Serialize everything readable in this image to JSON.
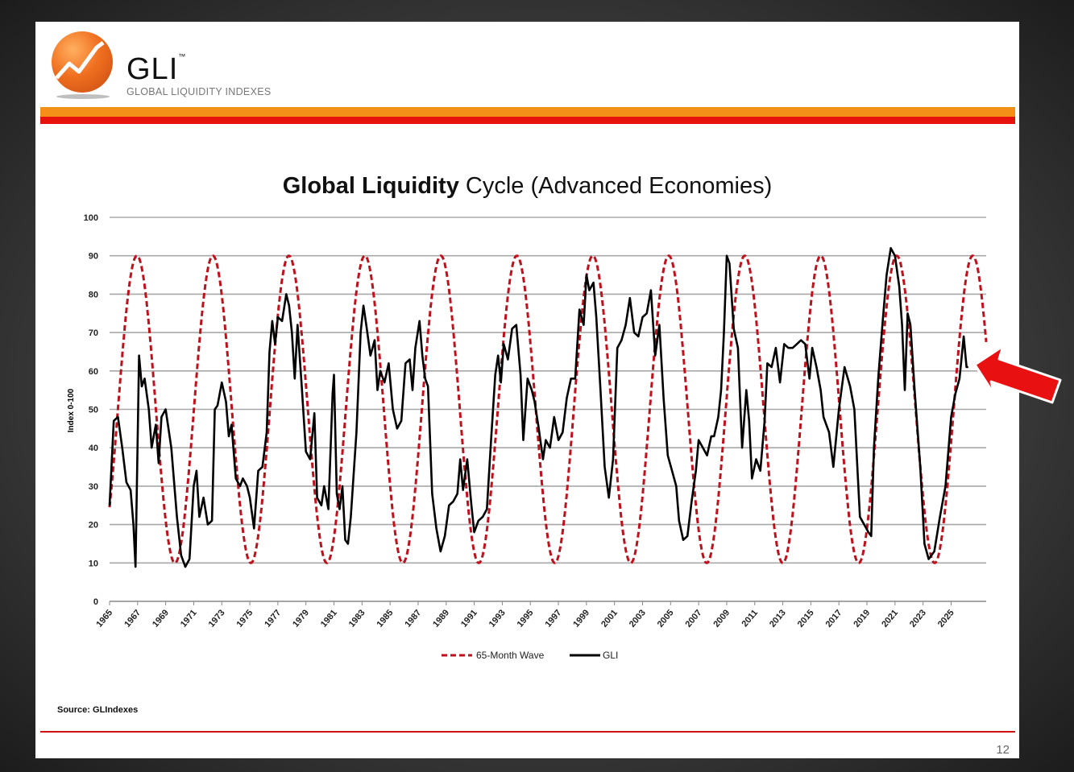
{
  "logo": {
    "name": "GLI",
    "tm": "™",
    "subtitle": "GLOBAL LIQUIDITY INDEXES"
  },
  "source": "Source: GLIndexes",
  "page_number": "12",
  "colors": {
    "wave": "#c0101c",
    "gli": "#000000",
    "accent_orange": "#f39018",
    "accent_red": "#e8120c",
    "arrow": "#e81010"
  },
  "chart_data": {
    "type": "line",
    "title_bold": "Global Liquidity",
    "title_rest": " Cycle (Advanced Economies)",
    "xlabel": "",
    "ylabel": "Index 0-100",
    "ylim": [
      0,
      100
    ],
    "xlim": [
      1965,
      2027.5
    ],
    "yticks": [
      "0",
      "10",
      "20",
      "30",
      "40",
      "50",
      "60",
      "70",
      "80",
      "90",
      "100"
    ],
    "xticks": [
      "1965",
      "1967",
      "1969",
      "1971",
      "1973",
      "1975",
      "1977",
      "1979",
      "1981",
      "1983",
      "1985",
      "1987",
      "1989",
      "1991",
      "1993",
      "1995",
      "1997",
      "1999",
      "2001",
      "2003",
      "2005",
      "2007",
      "2009",
      "2011",
      "2013",
      "2015",
      "2017",
      "2019",
      "2021",
      "2023",
      "2025"
    ],
    "grid": true,
    "legend_position": "bottom-center",
    "series": [
      {
        "name": "65-Month Wave",
        "style": "dashed",
        "formula": "50 + 40*cos(2*pi*(t-1966.95)/5.417)",
        "x_range": [
          1965,
          2027.5
        ]
      },
      {
        "name": "GLI",
        "style": "solid",
        "points": [
          [
            1965.0,
            25
          ],
          [
            1965.3,
            47
          ],
          [
            1965.6,
            48
          ],
          [
            1965.9,
            40
          ],
          [
            1966.2,
            31
          ],
          [
            1966.5,
            29
          ],
          [
            1966.7,
            20
          ],
          [
            1966.85,
            9
          ],
          [
            1967.1,
            64
          ],
          [
            1967.3,
            56
          ],
          [
            1967.5,
            58
          ],
          [
            1967.8,
            50
          ],
          [
            1968.0,
            40
          ],
          [
            1968.3,
            46
          ],
          [
            1968.5,
            36
          ],
          [
            1968.7,
            48
          ],
          [
            1969.0,
            50
          ],
          [
            1969.4,
            40
          ],
          [
            1969.8,
            22
          ],
          [
            1970.1,
            12
          ],
          [
            1970.4,
            9
          ],
          [
            1970.7,
            11
          ],
          [
            1971.0,
            30
          ],
          [
            1971.2,
            34
          ],
          [
            1971.4,
            22
          ],
          [
            1971.7,
            27
          ],
          [
            1972.0,
            20
          ],
          [
            1972.3,
            21
          ],
          [
            1972.5,
            50
          ],
          [
            1972.7,
            51
          ],
          [
            1973.0,
            57
          ],
          [
            1973.3,
            52
          ],
          [
            1973.5,
            43
          ],
          [
            1973.7,
            46
          ],
          [
            1974.0,
            32
          ],
          [
            1974.3,
            30
          ],
          [
            1974.5,
            32
          ],
          [
            1974.8,
            30
          ],
          [
            1975.0,
            27
          ],
          [
            1975.3,
            19
          ],
          [
            1975.6,
            34
          ],
          [
            1975.9,
            35
          ],
          [
            1976.2,
            44
          ],
          [
            1976.4,
            65
          ],
          [
            1976.6,
            73
          ],
          [
            1976.8,
            67
          ],
          [
            1977.0,
            74
          ],
          [
            1977.3,
            73
          ],
          [
            1977.6,
            80
          ],
          [
            1977.8,
            77
          ],
          [
            1978.0,
            70
          ],
          [
            1978.2,
            58
          ],
          [
            1978.4,
            72
          ],
          [
            1978.7,
            56
          ],
          [
            1979.0,
            39
          ],
          [
            1979.3,
            37
          ],
          [
            1979.6,
            49
          ],
          [
            1979.8,
            27
          ],
          [
            1980.1,
            25
          ],
          [
            1980.3,
            30
          ],
          [
            1980.6,
            24
          ],
          [
            1980.9,
            54
          ],
          [
            1981.0,
            59
          ],
          [
            1981.2,
            28
          ],
          [
            1981.4,
            24
          ],
          [
            1981.6,
            30
          ],
          [
            1981.8,
            16
          ],
          [
            1982.0,
            15
          ],
          [
            1982.2,
            22
          ],
          [
            1982.6,
            44
          ],
          [
            1982.9,
            70
          ],
          [
            1983.1,
            77
          ],
          [
            1983.3,
            72
          ],
          [
            1983.6,
            64
          ],
          [
            1983.9,
            68
          ],
          [
            1984.1,
            55
          ],
          [
            1984.3,
            60
          ],
          [
            1984.6,
            57
          ],
          [
            1984.9,
            62
          ],
          [
            1985.2,
            50
          ],
          [
            1985.5,
            45
          ],
          [
            1985.8,
            47
          ],
          [
            1986.1,
            62
          ],
          [
            1986.4,
            63
          ],
          [
            1986.6,
            55
          ],
          [
            1986.8,
            66
          ],
          [
            1987.1,
            73
          ],
          [
            1987.3,
            64
          ],
          [
            1987.5,
            58
          ],
          [
            1987.7,
            56
          ],
          [
            1988.0,
            28
          ],
          [
            1988.3,
            19
          ],
          [
            1988.6,
            13
          ],
          [
            1988.9,
            17
          ],
          [
            1989.2,
            25
          ],
          [
            1989.5,
            26
          ],
          [
            1989.8,
            28
          ],
          [
            1990.0,
            37
          ],
          [
            1990.2,
            29
          ],
          [
            1990.5,
            37
          ],
          [
            1990.8,
            25
          ],
          [
            1991.0,
            18
          ],
          [
            1991.3,
            21
          ],
          [
            1991.6,
            22
          ],
          [
            1991.9,
            24
          ],
          [
            1992.2,
            42
          ],
          [
            1992.5,
            59
          ],
          [
            1992.7,
            64
          ],
          [
            1992.9,
            57
          ],
          [
            1993.1,
            67
          ],
          [
            1993.4,
            63
          ],
          [
            1993.7,
            71
          ],
          [
            1994.0,
            72
          ],
          [
            1994.3,
            59
          ],
          [
            1994.5,
            42
          ],
          [
            1994.8,
            58
          ],
          [
            1995.1,
            55
          ],
          [
            1995.3,
            52
          ],
          [
            1995.6,
            45
          ],
          [
            1995.9,
            37
          ],
          [
            1996.1,
            42
          ],
          [
            1996.4,
            40
          ],
          [
            1996.7,
            48
          ],
          [
            1997.0,
            42
          ],
          [
            1997.3,
            44
          ],
          [
            1997.6,
            53
          ],
          [
            1997.9,
            58
          ],
          [
            1998.2,
            58
          ],
          [
            1998.5,
            76
          ],
          [
            1998.8,
            72
          ],
          [
            1999.0,
            85
          ],
          [
            1999.2,
            81
          ],
          [
            1999.5,
            83
          ],
          [
            1999.7,
            74
          ],
          [
            2000.0,
            55
          ],
          [
            2000.3,
            35
          ],
          [
            2000.6,
            27
          ],
          [
            2000.9,
            37
          ],
          [
            2001.2,
            66
          ],
          [
            2001.5,
            68
          ],
          [
            2001.8,
            72
          ],
          [
            2002.1,
            79
          ],
          [
            2002.4,
            70
          ],
          [
            2002.7,
            69
          ],
          [
            2003.0,
            74
          ],
          [
            2003.3,
            75
          ],
          [
            2003.6,
            81
          ],
          [
            2003.9,
            64
          ],
          [
            2004.2,
            72
          ],
          [
            2004.5,
            53
          ],
          [
            2004.8,
            38
          ],
          [
            2005.1,
            34
          ],
          [
            2005.4,
            30
          ],
          [
            2005.6,
            21
          ],
          [
            2005.9,
            16
          ],
          [
            2006.2,
            17
          ],
          [
            2006.5,
            26
          ],
          [
            2006.8,
            34
          ],
          [
            2007.0,
            42
          ],
          [
            2007.3,
            40
          ],
          [
            2007.6,
            38
          ],
          [
            2007.9,
            43
          ],
          [
            2008.1,
            43
          ],
          [
            2008.4,
            48
          ],
          [
            2008.6,
            55
          ],
          [
            2008.8,
            70
          ],
          [
            2009.0,
            90
          ],
          [
            2009.2,
            88
          ],
          [
            2009.5,
            71
          ],
          [
            2009.8,
            66
          ],
          [
            2010.1,
            40
          ],
          [
            2010.4,
            55
          ],
          [
            2010.6,
            47
          ],
          [
            2010.8,
            32
          ],
          [
            2011.1,
            37
          ],
          [
            2011.4,
            34
          ],
          [
            2011.7,
            47
          ],
          [
            2011.9,
            62
          ],
          [
            2012.2,
            61
          ],
          [
            2012.5,
            66
          ],
          [
            2012.8,
            57
          ],
          [
            2013.1,
            67
          ],
          [
            2013.4,
            66
          ],
          [
            2013.7,
            66
          ],
          [
            2014.0,
            67
          ],
          [
            2014.3,
            68
          ],
          [
            2014.6,
            67
          ],
          [
            2014.9,
            58
          ],
          [
            2015.1,
            66
          ],
          [
            2015.4,
            61
          ],
          [
            2015.7,
            55
          ],
          [
            2015.9,
            48
          ],
          [
            2016.3,
            44
          ],
          [
            2016.6,
            35
          ],
          [
            2017.0,
            50
          ],
          [
            2017.4,
            61
          ],
          [
            2017.8,
            56
          ],
          [
            2018.1,
            50
          ],
          [
            2018.5,
            22
          ],
          [
            2018.8,
            20
          ],
          [
            2019.1,
            18
          ],
          [
            2019.3,
            17
          ],
          [
            2019.5,
            40
          ],
          [
            2019.8,
            58
          ],
          [
            2020.1,
            72
          ],
          [
            2020.4,
            85
          ],
          [
            2020.7,
            92
          ],
          [
            2021.0,
            90
          ],
          [
            2021.3,
            82
          ],
          [
            2021.5,
            72
          ],
          [
            2021.7,
            55
          ],
          [
            2021.9,
            75
          ],
          [
            2022.1,
            72
          ],
          [
            2022.4,
            55
          ],
          [
            2022.8,
            35
          ],
          [
            2023.1,
            15
          ],
          [
            2023.4,
            11
          ],
          [
            2023.8,
            13
          ],
          [
            2024.2,
            22
          ],
          [
            2024.6,
            30
          ],
          [
            2025.0,
            48
          ],
          [
            2025.3,
            54
          ],
          [
            2025.6,
            58
          ],
          [
            2025.9,
            69
          ],
          [
            2026.1,
            61
          ],
          [
            2026.2,
            61
          ]
        ]
      }
    ]
  }
}
